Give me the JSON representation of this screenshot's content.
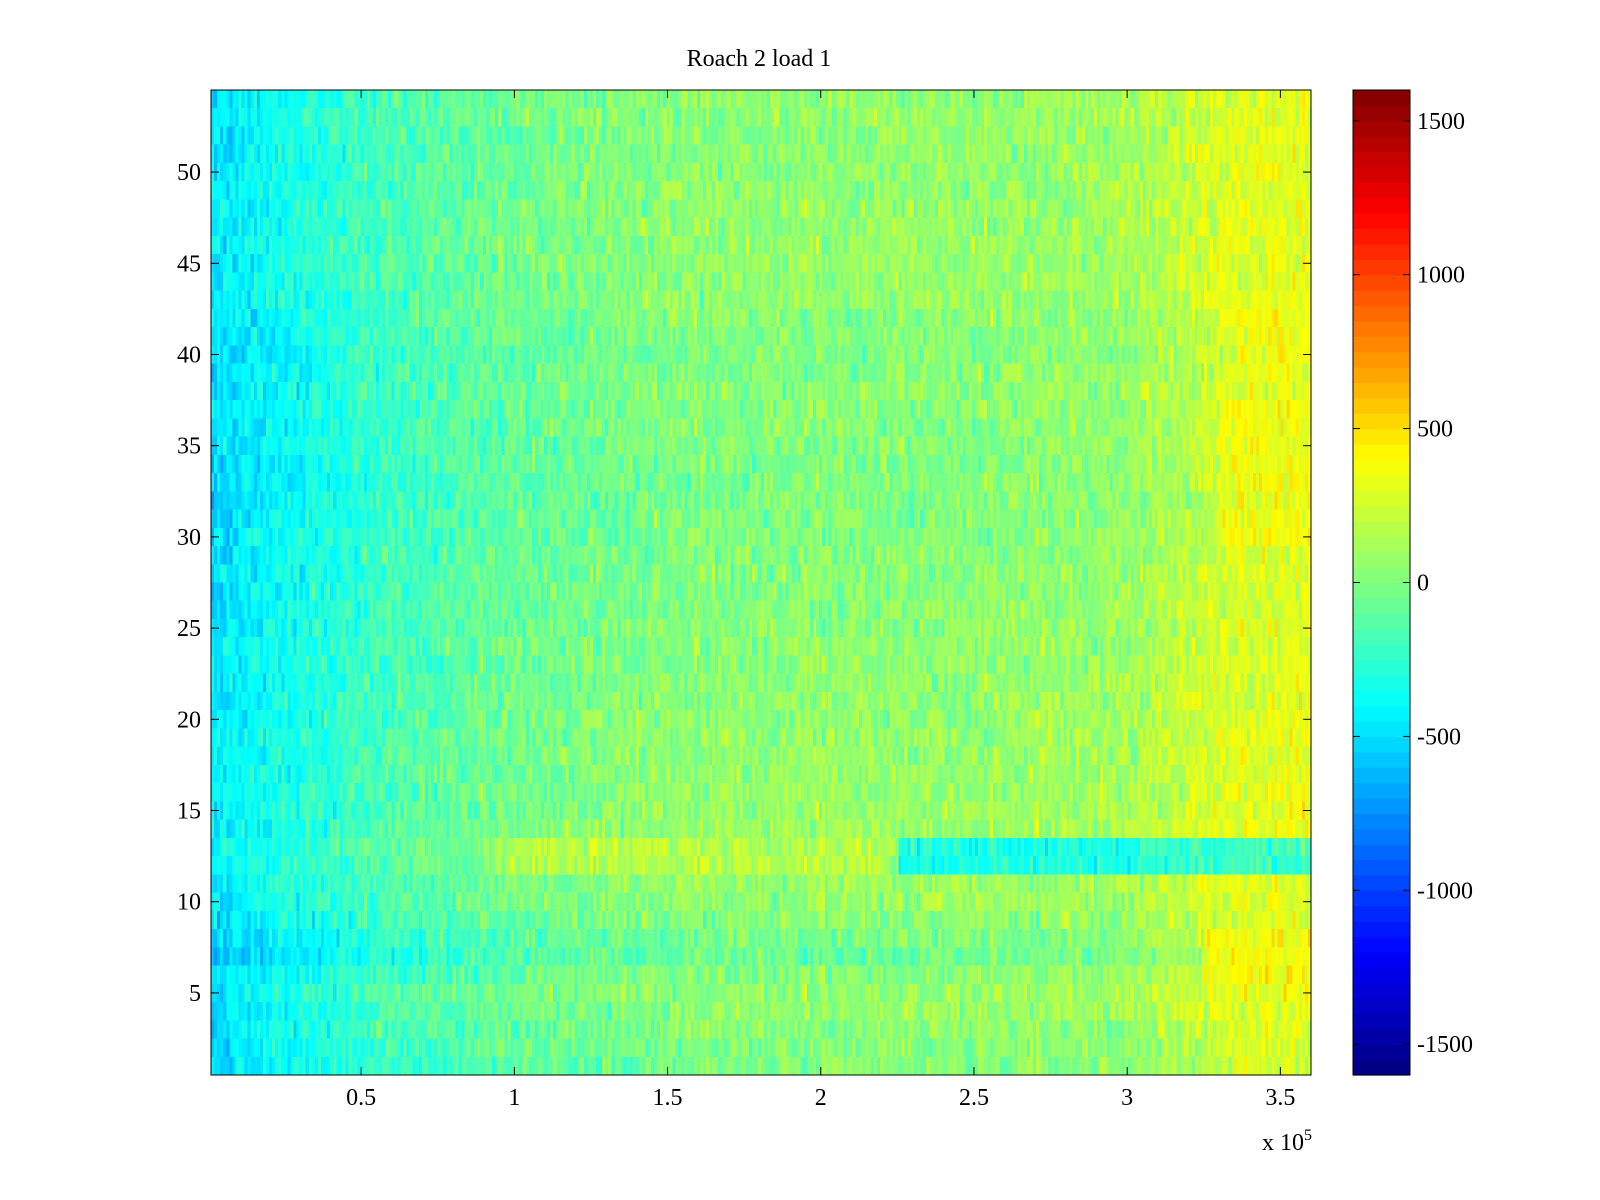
{
  "chart_data": {
    "type": "heatmap",
    "title": "Roach 2 load 1",
    "xlabel": "",
    "ylabel": "",
    "x_multiplier_label": {
      "base": "x 10",
      "exponent": "5"
    },
    "xlim": [
      0.01,
      3.6
    ],
    "ylim": [
      0.5,
      54.5
    ],
    "rows": 54,
    "columns": 360,
    "x_ticks": [
      0.5,
      1,
      1.5,
      2,
      2.5,
      3,
      3.5
    ],
    "x_tick_labels": [
      "0.5",
      "1",
      "1.5",
      "2",
      "2.5",
      "3",
      "3.5"
    ],
    "y_ticks": [
      5,
      10,
      15,
      20,
      25,
      30,
      35,
      40,
      45,
      50
    ],
    "y_tick_labels": [
      "5",
      "10",
      "15",
      "20",
      "25",
      "30",
      "35",
      "40",
      "45",
      "50"
    ],
    "colorbar": {
      "colormap": "jet",
      "range": [
        -1600,
        1600
      ],
      "ticks": [
        -1500,
        -1000,
        -500,
        0,
        500,
        1000,
        1500
      ],
      "tick_labels": [
        "-1500",
        "-1000",
        "-500",
        "0",
        "500",
        "1000",
        "1500"
      ]
    },
    "grid": false,
    "value_profile": {
      "x_trend": {
        "x": [
          0.0,
          0.3,
          0.6,
          1.0,
          1.5,
          2.0,
          2.5,
          3.0,
          3.3,
          3.6
        ],
        "value": [
          -450,
          -300,
          -150,
          -30,
          50,
          70,
          80,
          120,
          300,
          350
        ]
      },
      "row_offsets": {
        "row": [
          1,
          2,
          3,
          4,
          5,
          6,
          7,
          8,
          10,
          12,
          13,
          14,
          20,
          30,
          33,
          35,
          38,
          40,
          42,
          45,
          50,
          54
        ],
        "value": [
          -80,
          -60,
          -40,
          -20,
          0,
          -50,
          -130,
          -90,
          0,
          20,
          40,
          10,
          -10,
          -60,
          -80,
          -60,
          -40,
          -70,
          -30,
          0,
          -20,
          -20
        ]
      },
      "row_x_anomalies": [
        {
          "rows": [
            12,
            13
          ],
          "x_range": [
            2.25,
            3.6
          ],
          "value": -350
        },
        {
          "rows": [
            12,
            13
          ],
          "x_range": [
            0.9,
            2.2
          ],
          "value": 150
        },
        {
          "rows": [
            6,
            7,
            8
          ],
          "x_range": [
            3.25,
            3.6
          ],
          "value": 300
        },
        {
          "rows": [
            30,
            31,
            32,
            33,
            34,
            35,
            36,
            37
          ],
          "x_range": [
            3.3,
            3.6
          ],
          "value": 250
        },
        {
          "rows": [
            39,
            40,
            41,
            42
          ],
          "x_range": [
            3.35,
            3.6
          ],
          "value": 250
        }
      ],
      "noise_amplitude": 260
    }
  }
}
